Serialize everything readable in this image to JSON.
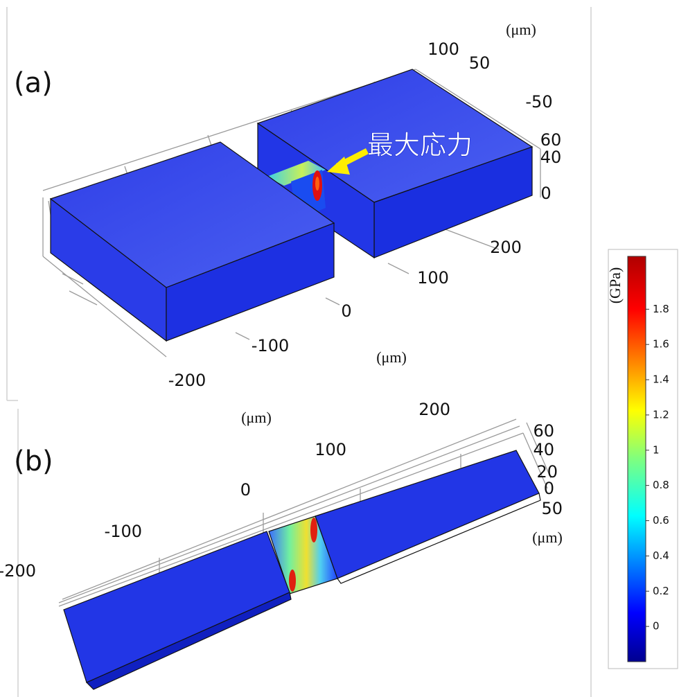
{
  "panel_a": {
    "label": "(a)",
    "annotation": "最大応力",
    "ticks": [
      "100",
      "50",
      "-50",
      "60",
      "40",
      "0",
      "200",
      "100",
      "0",
      "-100",
      "-200"
    ],
    "units": [
      "(μm)",
      "(μm)"
    ]
  },
  "panel_b": {
    "label": "(b)",
    "ticks": [
      "200",
      "100",
      "0",
      "-100",
      "-200",
      "60",
      "40",
      "20",
      "0",
      "50"
    ],
    "units": [
      "(μm)",
      "(μm)"
    ]
  },
  "colorbar": {
    "title": "(GPa)",
    "range": [
      -0.2,
      2.1
    ],
    "ticks": [
      0,
      0.2,
      0.4,
      0.6,
      0.8,
      1,
      1.2,
      1.4,
      1.6,
      1.8
    ]
  }
}
